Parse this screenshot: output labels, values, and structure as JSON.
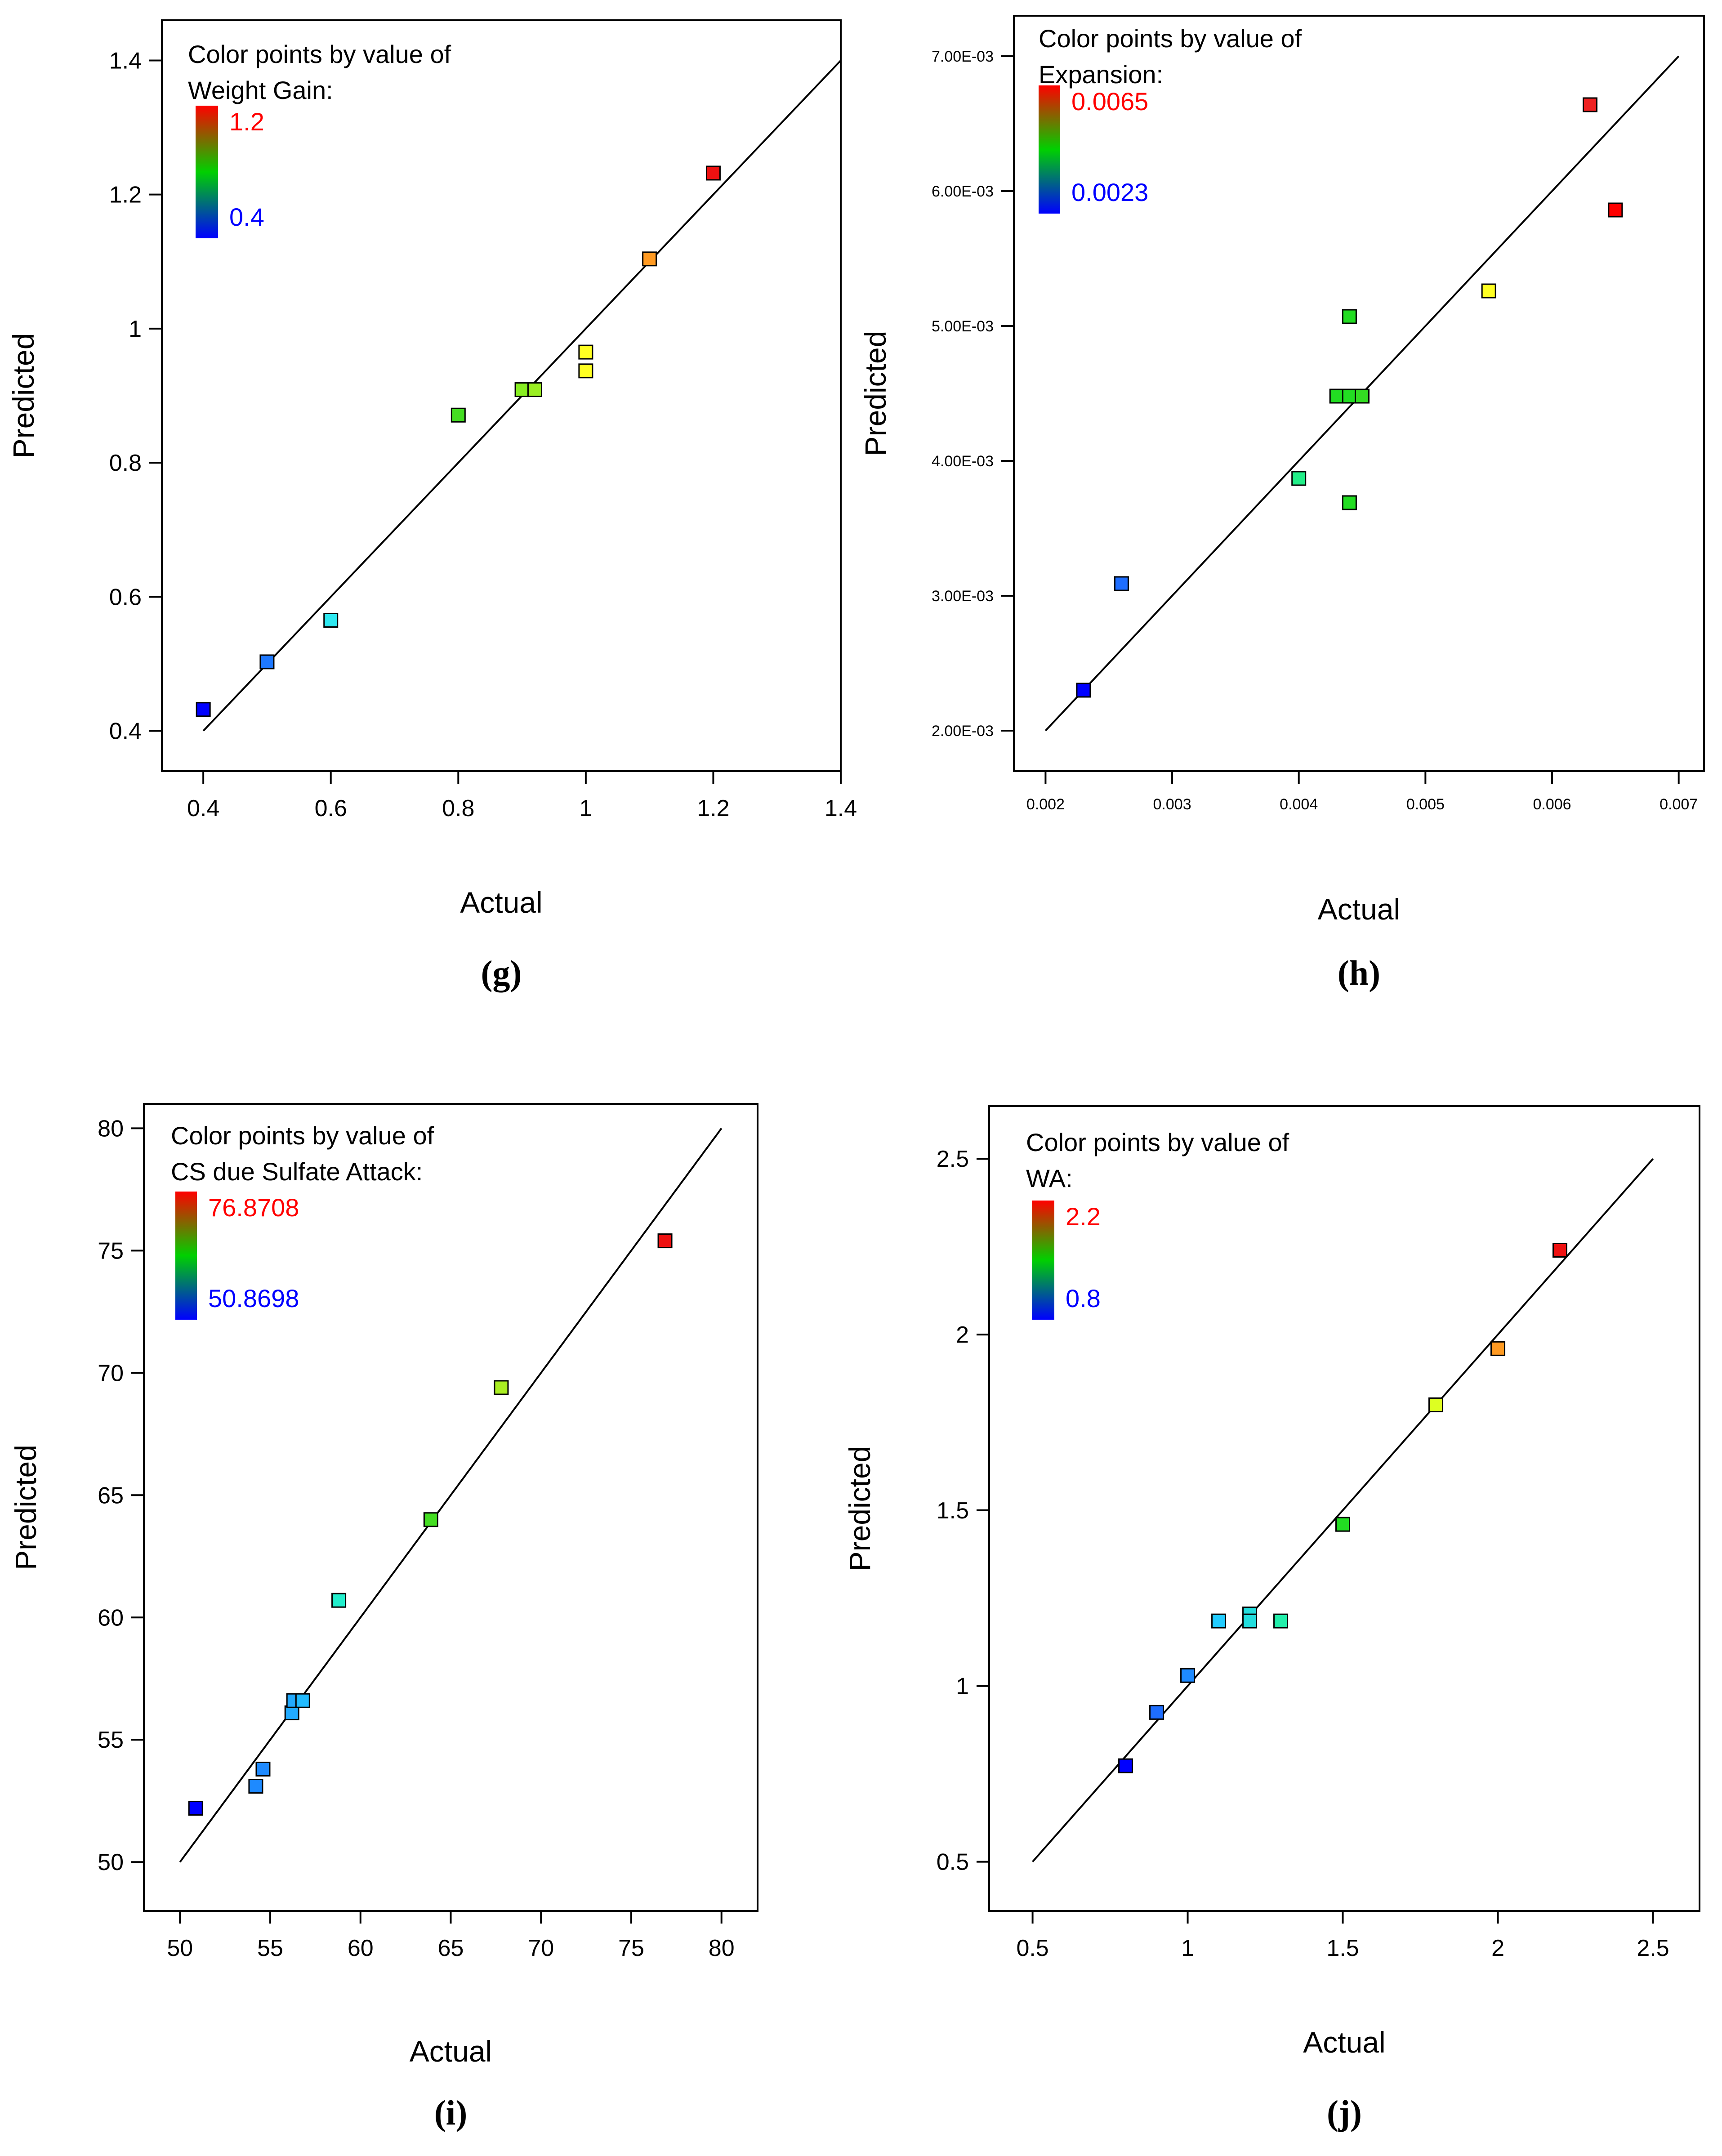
{
  "colors": {
    "high": "#ff0000",
    "low": "#0000ff",
    "gradient": [
      "#ff0000",
      "#00d000",
      "#0000ff"
    ]
  },
  "chart_data": [
    {
      "id": "g",
      "type": "scatter",
      "caption": "(g)",
      "xlabel": "Actual",
      "ylabel": "Predicted",
      "xlim": [
        0.335,
        1.4
      ],
      "ylim": [
        0.34,
        1.46
      ],
      "xticks": [
        0.4,
        0.6,
        0.8,
        1.0,
        1.2,
        1.4
      ],
      "yticks": [
        0.4,
        0.6,
        0.8,
        1.0,
        1.2,
        1.4
      ],
      "xtick_labels": [
        "0.4",
        "0.6",
        "0.8",
        "1",
        "1.2",
        "1.4"
      ],
      "ytick_labels": [
        "0.4",
        "0.6",
        "0.8",
        "1",
        "1.2",
        "1.4"
      ],
      "diagonal": [
        0.4,
        1.4
      ],
      "legend": {
        "title_line1": "Color points by value of",
        "title_line2": "Weight Gain:",
        "high": "1.2",
        "low": "0.4",
        "position": "top-left"
      },
      "points": [
        {
          "x": 0.4,
          "y": 0.432,
          "color": "#0000ff"
        },
        {
          "x": 0.5,
          "y": 0.503,
          "color": "#1e78ff"
        },
        {
          "x": 0.6,
          "y": 0.565,
          "color": "#2ee8f0"
        },
        {
          "x": 0.8,
          "y": 0.871,
          "color": "#44dd22"
        },
        {
          "x": 0.9,
          "y": 0.909,
          "color": "#88ee22"
        },
        {
          "x": 0.92,
          "y": 0.909,
          "color": "#9aee22"
        },
        {
          "x": 1.0,
          "y": 0.965,
          "color": "#ffff22"
        },
        {
          "x": 1.0,
          "y": 0.937,
          "color": "#ffff22"
        },
        {
          "x": 1.1,
          "y": 1.104,
          "color": "#ff9a22"
        },
        {
          "x": 1.2,
          "y": 1.232,
          "color": "#ee1111"
        }
      ]
    },
    {
      "id": "h",
      "type": "scatter",
      "caption": "(h)",
      "xlabel": "Actual",
      "ylabel": "Predicted",
      "xlim": [
        0.00175,
        0.0072
      ],
      "ylim": [
        0.0017,
        0.0073
      ],
      "xticks": [
        0.002,
        0.003,
        0.004,
        0.005,
        0.006,
        0.007
      ],
      "yticks": [
        0.002,
        0.003,
        0.004,
        0.005,
        0.006,
        0.007
      ],
      "xtick_labels": [
        "0.002",
        "0.003",
        "0.004",
        "0.005",
        "0.006",
        "0.007"
      ],
      "ytick_labels": [
        "2.00E-03",
        "3.00E-03",
        "4.00E-03",
        "5.00E-03",
        "6.00E-03",
        "7.00E-03"
      ],
      "diagonal": [
        0.002,
        0.007
      ],
      "legend": {
        "title_line1": "Color points by value of",
        "title_line2": "Expansion:",
        "high": "0.0065",
        "low": "0.0023",
        "position": "top-left"
      },
      "points": [
        {
          "x": 0.0023,
          "y": 0.0023,
          "color": "#0000ff"
        },
        {
          "x": 0.0026,
          "y": 0.00309,
          "color": "#1e6eff"
        },
        {
          "x": 0.004,
          "y": 0.00387,
          "color": "#22ee88"
        },
        {
          "x": 0.0043,
          "y": 0.00448,
          "color": "#22dd22"
        },
        {
          "x": 0.0044,
          "y": 0.00448,
          "color": "#22dd22"
        },
        {
          "x": 0.0045,
          "y": 0.00448,
          "color": "#33dd22"
        },
        {
          "x": 0.0044,
          "y": 0.00507,
          "color": "#22dd22"
        },
        {
          "x": 0.0044,
          "y": 0.00369,
          "color": "#22dd22"
        },
        {
          "x": 0.0055,
          "y": 0.00526,
          "color": "#ffff22"
        },
        {
          "x": 0.0063,
          "y": 0.00664,
          "color": "#ee2222"
        },
        {
          "x": 0.0065,
          "y": 0.00586,
          "color": "#ff0000"
        }
      ]
    },
    {
      "id": "i",
      "type": "scatter",
      "caption": "(i)",
      "xlabel": "Actual",
      "ylabel": "Predicted",
      "xlim": [
        48.0,
        82.0
      ],
      "ylim": [
        48.0,
        81.0
      ],
      "xticks": [
        50,
        55,
        60,
        65,
        70,
        75,
        80
      ],
      "yticks": [
        50,
        55,
        60,
        65,
        70,
        75,
        80
      ],
      "xtick_labels": [
        "50",
        "55",
        "60",
        "65",
        "70",
        "75",
        "80"
      ],
      "ytick_labels": [
        "50",
        "55",
        "60",
        "65",
        "70",
        "75",
        "80"
      ],
      "diagonal": [
        50,
        80
      ],
      "legend": {
        "title_line1": "Color points by value of",
        "title_line2": "CS due Sulfate Attack:",
        "high": "76.8708",
        "low": "50.8698",
        "position": "top-left"
      },
      "points": [
        {
          "x": 50.87,
          "y": 52.2,
          "color": "#0000ff"
        },
        {
          "x": 54.2,
          "y": 53.1,
          "color": "#1e8aff"
        },
        {
          "x": 54.6,
          "y": 53.8,
          "color": "#1e8aff"
        },
        {
          "x": 56.2,
          "y": 56.1,
          "color": "#22aaff"
        },
        {
          "x": 56.3,
          "y": 56.6,
          "color": "#22aaff"
        },
        {
          "x": 56.8,
          "y": 56.6,
          "color": "#22bbff"
        },
        {
          "x": 58.8,
          "y": 60.7,
          "color": "#22eecc"
        },
        {
          "x": 63.9,
          "y": 64.0,
          "color": "#44dd22"
        },
        {
          "x": 67.8,
          "y": 69.4,
          "color": "#aaee22"
        },
        {
          "x": 76.87,
          "y": 75.4,
          "color": "#ee1111"
        }
      ]
    },
    {
      "id": "j",
      "type": "scatter",
      "caption": "(j)",
      "xlabel": "Actual",
      "ylabel": "Predicted",
      "xlim": [
        0.36,
        2.65
      ],
      "ylim": [
        0.36,
        2.65
      ],
      "xticks": [
        0.5,
        1.0,
        1.5,
        2.0,
        2.5
      ],
      "yticks": [
        0.5,
        1.0,
        1.5,
        2.0,
        2.5
      ],
      "xtick_labels": [
        "0.5",
        "1",
        "1.5",
        "2",
        "2.5"
      ],
      "ytick_labels": [
        "0.5",
        "1",
        "1.5",
        "2",
        "2.5"
      ],
      "diagonal": [
        0.5,
        2.5
      ],
      "legend": {
        "title_line1": "Color points by value of",
        "title_line2": "WA:",
        "high": "2.2",
        "low": "0.8",
        "position": "top-left"
      },
      "points": [
        {
          "x": 0.8,
          "y": 0.773,
          "color": "#0000ff"
        },
        {
          "x": 0.9,
          "y": 0.925,
          "color": "#1e6eff"
        },
        {
          "x": 1.0,
          "y": 1.03,
          "color": "#1e8aff"
        },
        {
          "x": 1.1,
          "y": 1.185,
          "color": "#22ccff"
        },
        {
          "x": 1.2,
          "y": 1.205,
          "color": "#22dddd"
        },
        {
          "x": 1.2,
          "y": 1.185,
          "color": "#22dddd"
        },
        {
          "x": 1.3,
          "y": 1.185,
          "color": "#22eeaa"
        },
        {
          "x": 1.5,
          "y": 1.46,
          "color": "#22dd22"
        },
        {
          "x": 1.8,
          "y": 1.8,
          "color": "#ddff22"
        },
        {
          "x": 2.0,
          "y": 1.96,
          "color": "#ff9a22"
        },
        {
          "x": 2.2,
          "y": 2.24,
          "color": "#ee1111"
        }
      ]
    }
  ]
}
